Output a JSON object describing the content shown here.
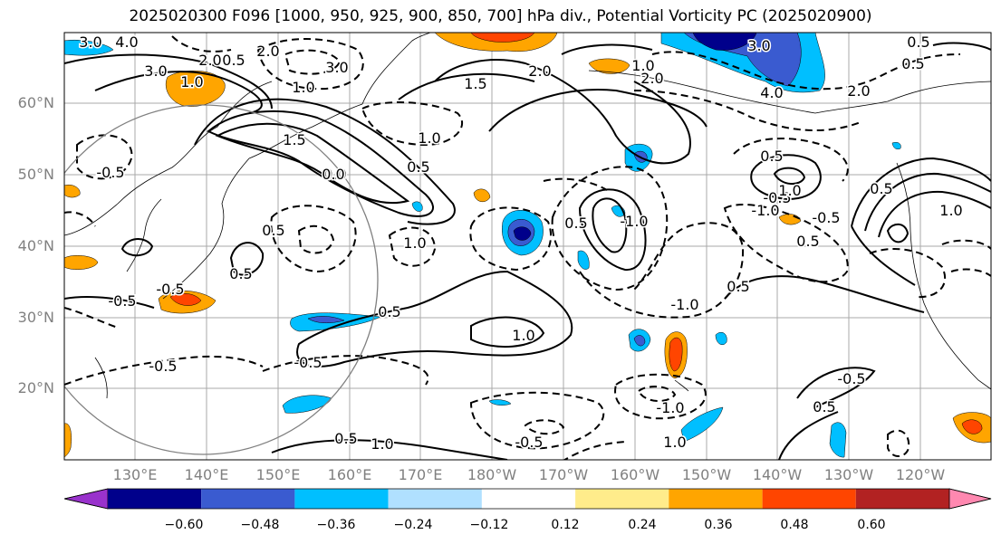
{
  "title": "2025020300 F096 [1000, 950, 925, 900, 850, 700] hPa div., Potential Vorticity PC (2025020900)",
  "axes": {
    "lat_labels": [
      "60°N",
      "50°N",
      "40°N",
      "30°N",
      "20°N"
    ],
    "lon_labels": [
      "130°E",
      "140°E",
      "150°E",
      "160°E",
      "170°E",
      "180°W",
      "170°W",
      "160°W",
      "150°W",
      "140°W",
      "130°W",
      "120°W"
    ]
  },
  "colorbar": {
    "ticks": [
      "−0.60",
      "−0.48",
      "−0.36",
      "−0.24",
      "−0.12",
      "0.12",
      "0.24",
      "0.36",
      "0.48",
      "0.60"
    ],
    "colors": [
      "#9932cc",
      "#00008b",
      "#3a5bd0",
      "#00bfff",
      "#b0e0ff",
      "#ffffff",
      "#ffec8b",
      "#ffa500",
      "#ff4500",
      "#b22222",
      "#ff88b0"
    ]
  },
  "contour_labels": [
    "3.0",
    "4.0",
    "3.0",
    "1.0",
    "2.0",
    "0.5",
    "2.0",
    "1.0",
    "3.0",
    "1.5",
    "1.0",
    "1.5",
    "0.5",
    "-0.5",
    "0.0",
    "0.5",
    "0.5",
    "0.5",
    "-0.5",
    "-0.5",
    "1.0",
    "0.5",
    "-0.5",
    "-0.5",
    "0.5",
    "1.0",
    "-1.0",
    "0.5",
    "1.0",
    "-0.5",
    "0.5",
    "1.0",
    "2.0",
    "3.0",
    "4.0",
    "2.0",
    "1.0",
    "0.5",
    "-0.5",
    "1.0",
    "-1.0",
    "-0.5",
    "0.5",
    "-0.5",
    "0.5",
    "0.5",
    "-1.0",
    "-1.0",
    "1.0",
    "2.0",
    "0.5",
    "0.0"
  ]
}
